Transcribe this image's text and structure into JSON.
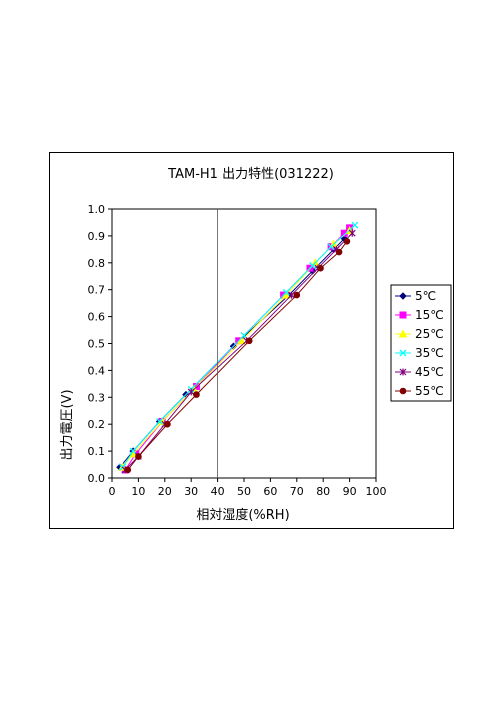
{
  "chart_data": {
    "type": "line",
    "title": "TAM-H1 出力特性(031222)",
    "xlabel": "相対湿度(%RH)",
    "ylabel": "出力電圧(V)",
    "xlim": [
      0,
      100
    ],
    "ylim": [
      0.0,
      1.0
    ],
    "xticks": [
      "0",
      "10",
      "20",
      "30",
      "40",
      "50",
      "60",
      "70",
      "80",
      "90",
      "100"
    ],
    "yticks": [
      "0.0",
      "0.1",
      "0.2",
      "0.3",
      "0.4",
      "0.5",
      "0.6",
      "0.7",
      "0.8",
      "0.9",
      "1.0"
    ],
    "grid": false,
    "reference_line_x": 40,
    "legend": "right",
    "series": [
      {
        "name": "5℃",
        "color": "#000080",
        "marker": "diamond",
        "x": [
          3,
          8,
          18,
          28,
          46,
          67,
          76,
          84,
          88
        ],
        "y": [
          0.04,
          0.1,
          0.21,
          0.31,
          0.49,
          0.68,
          0.77,
          0.85,
          0.89
        ]
      },
      {
        "name": "15℃",
        "color": "#ff00ff",
        "marker": "square",
        "x": [
          5,
          9,
          19,
          32,
          48,
          65,
          75,
          83,
          88,
          90
        ],
        "y": [
          0.03,
          0.09,
          0.21,
          0.34,
          0.51,
          0.68,
          0.78,
          0.86,
          0.91,
          0.93
        ]
      },
      {
        "name": "25℃",
        "color": "#ffff00",
        "marker": "triangle",
        "x": [
          4,
          8,
          19,
          31,
          49,
          66,
          77,
          84,
          90
        ],
        "y": [
          0.04,
          0.09,
          0.21,
          0.33,
          0.51,
          0.68,
          0.8,
          0.87,
          0.92
        ]
      },
      {
        "name": "35℃",
        "color": "#00ffff",
        "marker": "x",
        "x": [
          4,
          8,
          18,
          30,
          50,
          66,
          76,
          83,
          92
        ],
        "y": [
          0.04,
          0.1,
          0.21,
          0.33,
          0.53,
          0.69,
          0.79,
          0.86,
          0.94
        ]
      },
      {
        "name": "45℃",
        "color": "#800080",
        "marker": "star",
        "x": [
          5,
          10,
          20,
          30,
          51,
          68,
          78,
          85,
          91
        ],
        "y": [
          0.03,
          0.08,
          0.2,
          0.32,
          0.51,
          0.68,
          0.78,
          0.85,
          0.91
        ]
      },
      {
        "name": "55℃",
        "color": "#800000",
        "marker": "circle",
        "x": [
          6,
          10,
          21,
          32,
          52,
          70,
          79,
          86,
          89
        ],
        "y": [
          0.03,
          0.08,
          0.2,
          0.31,
          0.51,
          0.68,
          0.78,
          0.84,
          0.88
        ]
      }
    ]
  }
}
